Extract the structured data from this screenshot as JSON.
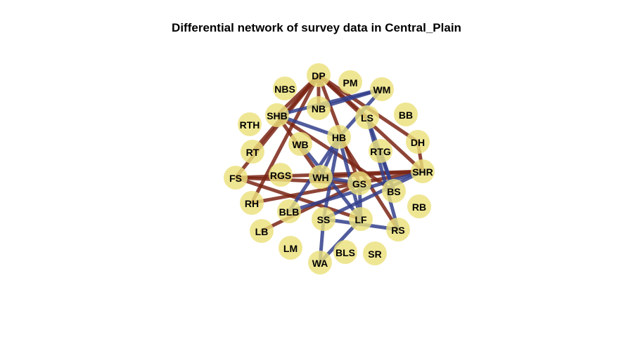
{
  "title": "Differential network of survey data in Central_Plain",
  "colors": {
    "background": "#ffffff",
    "node_fill": "#ebe07c",
    "edge_positive": "#7a2414",
    "edge_negative": "#333f8c"
  },
  "nodes": [
    {
      "id": "DP",
      "label": "DP"
    },
    {
      "id": "PM",
      "label": "PM"
    },
    {
      "id": "NBS",
      "label": "NBS"
    },
    {
      "id": "WM",
      "label": "WM"
    },
    {
      "id": "NB",
      "label": "NB"
    },
    {
      "id": "SHB",
      "label": "SHB"
    },
    {
      "id": "LS",
      "label": "LS"
    },
    {
      "id": "BB",
      "label": "BB"
    },
    {
      "id": "RTH",
      "label": "RTH"
    },
    {
      "id": "HB",
      "label": "HB"
    },
    {
      "id": "DH",
      "label": "DH"
    },
    {
      "id": "WB",
      "label": "WB"
    },
    {
      "id": "RT",
      "label": "RT"
    },
    {
      "id": "RTG",
      "label": "RTG"
    },
    {
      "id": "SHR",
      "label": "SHR"
    },
    {
      "id": "FS",
      "label": "FS"
    },
    {
      "id": "RGS",
      "label": "RGS"
    },
    {
      "id": "WH",
      "label": "WH"
    },
    {
      "id": "GS",
      "label": "GS"
    },
    {
      "id": "BS",
      "label": "BS"
    },
    {
      "id": "RH",
      "label": "RH"
    },
    {
      "id": "RB",
      "label": "RB"
    },
    {
      "id": "BLB",
      "label": "BLB"
    },
    {
      "id": "SS",
      "label": "SS"
    },
    {
      "id": "LF",
      "label": "LF"
    },
    {
      "id": "RS",
      "label": "RS"
    },
    {
      "id": "LB",
      "label": "LB"
    },
    {
      "id": "LM",
      "label": "LM"
    },
    {
      "id": "BLS",
      "label": "BLS"
    },
    {
      "id": "SR",
      "label": "SR"
    },
    {
      "id": "WA",
      "label": "WA"
    }
  ],
  "edges": [
    {
      "source": "DP",
      "target": "SHB",
      "sign": "positive"
    },
    {
      "source": "DP",
      "target": "NB",
      "sign": "positive"
    },
    {
      "source": "DP",
      "target": "LS",
      "sign": "positive"
    },
    {
      "source": "DP",
      "target": "DH",
      "sign": "positive"
    },
    {
      "source": "DP",
      "target": "RT",
      "sign": "positive"
    },
    {
      "source": "DP",
      "target": "FS",
      "sign": "positive"
    },
    {
      "source": "DP",
      "target": "RH",
      "sign": "positive"
    },
    {
      "source": "DP",
      "target": "GS",
      "sign": "positive"
    },
    {
      "source": "DP",
      "target": "SHR",
      "sign": "positive"
    },
    {
      "source": "DH",
      "target": "SHR",
      "sign": "positive"
    },
    {
      "source": "SHB",
      "target": "BS",
      "sign": "positive"
    },
    {
      "source": "SHB",
      "target": "WH",
      "sign": "positive"
    },
    {
      "source": "HB",
      "target": "RS",
      "sign": "positive"
    },
    {
      "source": "FS",
      "target": "SHR",
      "sign": "positive"
    },
    {
      "source": "FS",
      "target": "GS",
      "sign": "positive"
    },
    {
      "source": "WH",
      "target": "SHR",
      "sign": "positive"
    },
    {
      "source": "RH",
      "target": "SHR",
      "sign": "positive"
    },
    {
      "source": "FS",
      "target": "LF",
      "sign": "positive"
    },
    {
      "source": "LB",
      "target": "GS",
      "sign": "positive"
    },
    {
      "source": "WM",
      "target": "NB",
      "sign": "negative"
    },
    {
      "source": "WM",
      "target": "SHB",
      "sign": "negative"
    },
    {
      "source": "WM",
      "target": "HB",
      "sign": "negative"
    },
    {
      "source": "SHB",
      "target": "HB",
      "sign": "negative"
    },
    {
      "source": "LS",
      "target": "BS",
      "sign": "negative"
    },
    {
      "source": "LS",
      "target": "RS",
      "sign": "negative"
    },
    {
      "source": "HB",
      "target": "WH",
      "sign": "negative"
    },
    {
      "source": "HB",
      "target": "SS",
      "sign": "negative"
    },
    {
      "source": "HB",
      "target": "LF",
      "sign": "negative"
    },
    {
      "source": "RTG",
      "target": "BS",
      "sign": "negative"
    },
    {
      "source": "WB",
      "target": "LF",
      "sign": "negative"
    },
    {
      "source": "WH",
      "target": "GS",
      "sign": "negative"
    },
    {
      "source": "BLB",
      "target": "SHR",
      "sign": "negative"
    },
    {
      "source": "SS",
      "target": "SHR",
      "sign": "negative"
    },
    {
      "source": "SS",
      "target": "RS",
      "sign": "negative"
    },
    {
      "source": "SS",
      "target": "WA",
      "sign": "negative"
    },
    {
      "source": "LF",
      "target": "WA",
      "sign": "negative"
    },
    {
      "source": "GS",
      "target": "LF",
      "sign": "negative"
    },
    {
      "source": "BLB",
      "target": "HB",
      "sign": "negative"
    }
  ]
}
